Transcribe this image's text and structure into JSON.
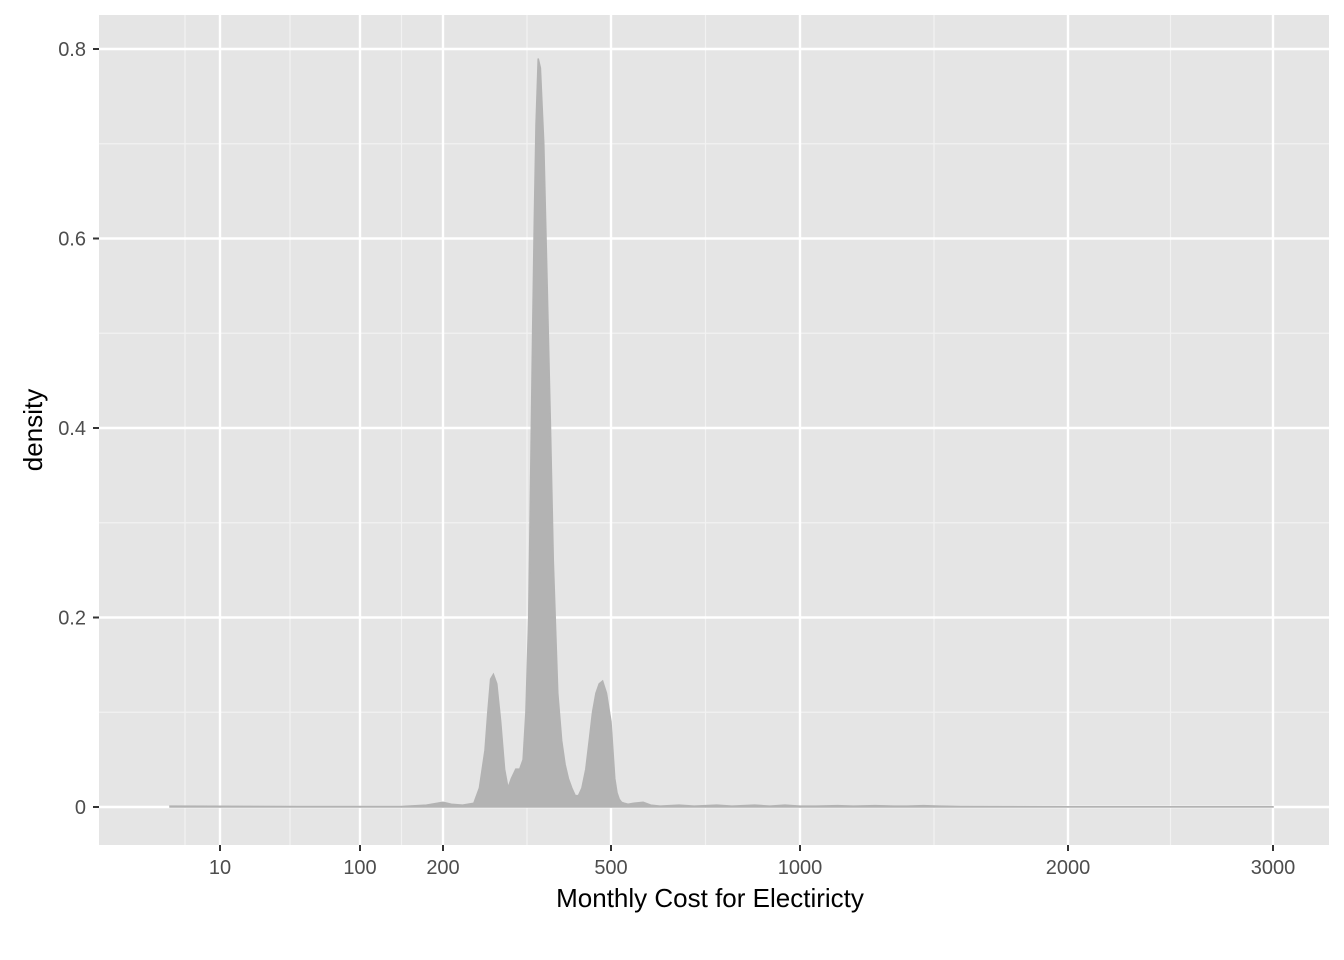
{
  "chart_data": {
    "type": "area",
    "xlabel": "Monthly Cost for Electiricty",
    "ylabel": "density",
    "x_scale": "sqrt",
    "xlim": [
      3,
      3000
    ],
    "ylim": [
      -0.04,
      0.835
    ],
    "x_ticks": [
      10,
      100,
      200,
      500,
      1000,
      2000,
      3000
    ],
    "x_tick_labels": [
      "10",
      "100",
      "200",
      "500",
      "1000",
      "2000",
      "3000"
    ],
    "y_ticks": [
      0,
      0.2,
      0.4,
      0.6,
      0.8
    ],
    "y_tick_labels": [
      "0",
      "0.2",
      "0.4",
      "0.6",
      "0.8"
    ],
    "grid": true,
    "colors": {
      "panel": "#e5e5e5",
      "grid": "#ffffff",
      "fill": "#b3b3b3",
      "outline": "#b3b3b3"
    },
    "series": [
      {
        "x": [
          5,
          60,
          150,
          180,
          200,
          215,
          235,
          255,
          265,
          275,
          280,
          285,
          290,
          296,
          303,
          310,
          316,
          322,
          330,
          337,
          343,
          348,
          353,
          356,
          360,
          363,
          366,
          370,
          374,
          380,
          386,
          392,
          397,
          405,
          412,
          418,
          424,
          430,
          436,
          442,
          448,
          455,
          461,
          467,
          473,
          479,
          485,
          492,
          500,
          505,
          510,
          516,
          522,
          528,
          535,
          545,
          560,
          585,
          605,
          630,
          680,
          720,
          780,
          820,
          880,
          920,
          960,
          1000,
          1060,
          1140,
          1200,
          1280,
          1350,
          1400,
          1460,
          1520,
          1600,
          2000,
          2500,
          3000
        ],
        "y": [
          0.001,
          0.0005,
          0.0005,
          0.002,
          0.005,
          0.003,
          0.002,
          0.004,
          0.02,
          0.06,
          0.1,
          0.135,
          0.14,
          0.13,
          0.09,
          0.04,
          0.02,
          0.03,
          0.04,
          0.04,
          0.05,
          0.1,
          0.2,
          0.33,
          0.5,
          0.62,
          0.72,
          0.79,
          0.78,
          0.7,
          0.55,
          0.4,
          0.26,
          0.12,
          0.07,
          0.045,
          0.03,
          0.02,
          0.012,
          0.012,
          0.02,
          0.04,
          0.07,
          0.1,
          0.12,
          0.13,
          0.133,
          0.12,
          0.09,
          0.06,
          0.03,
          0.015,
          0.008,
          0.005,
          0.004,
          0.003,
          0.004,
          0.005,
          0.002,
          0.001,
          0.002,
          0.001,
          0.002,
          0.001,
          0.002,
          0.001,
          0.002,
          0.001,
          0.001,
          0.0015,
          0.001,
          0.0015,
          0.001,
          0.001,
          0.0015,
          0.001,
          0.0005,
          0.0003,
          0.0002,
          0.0002
        ]
      }
    ]
  }
}
